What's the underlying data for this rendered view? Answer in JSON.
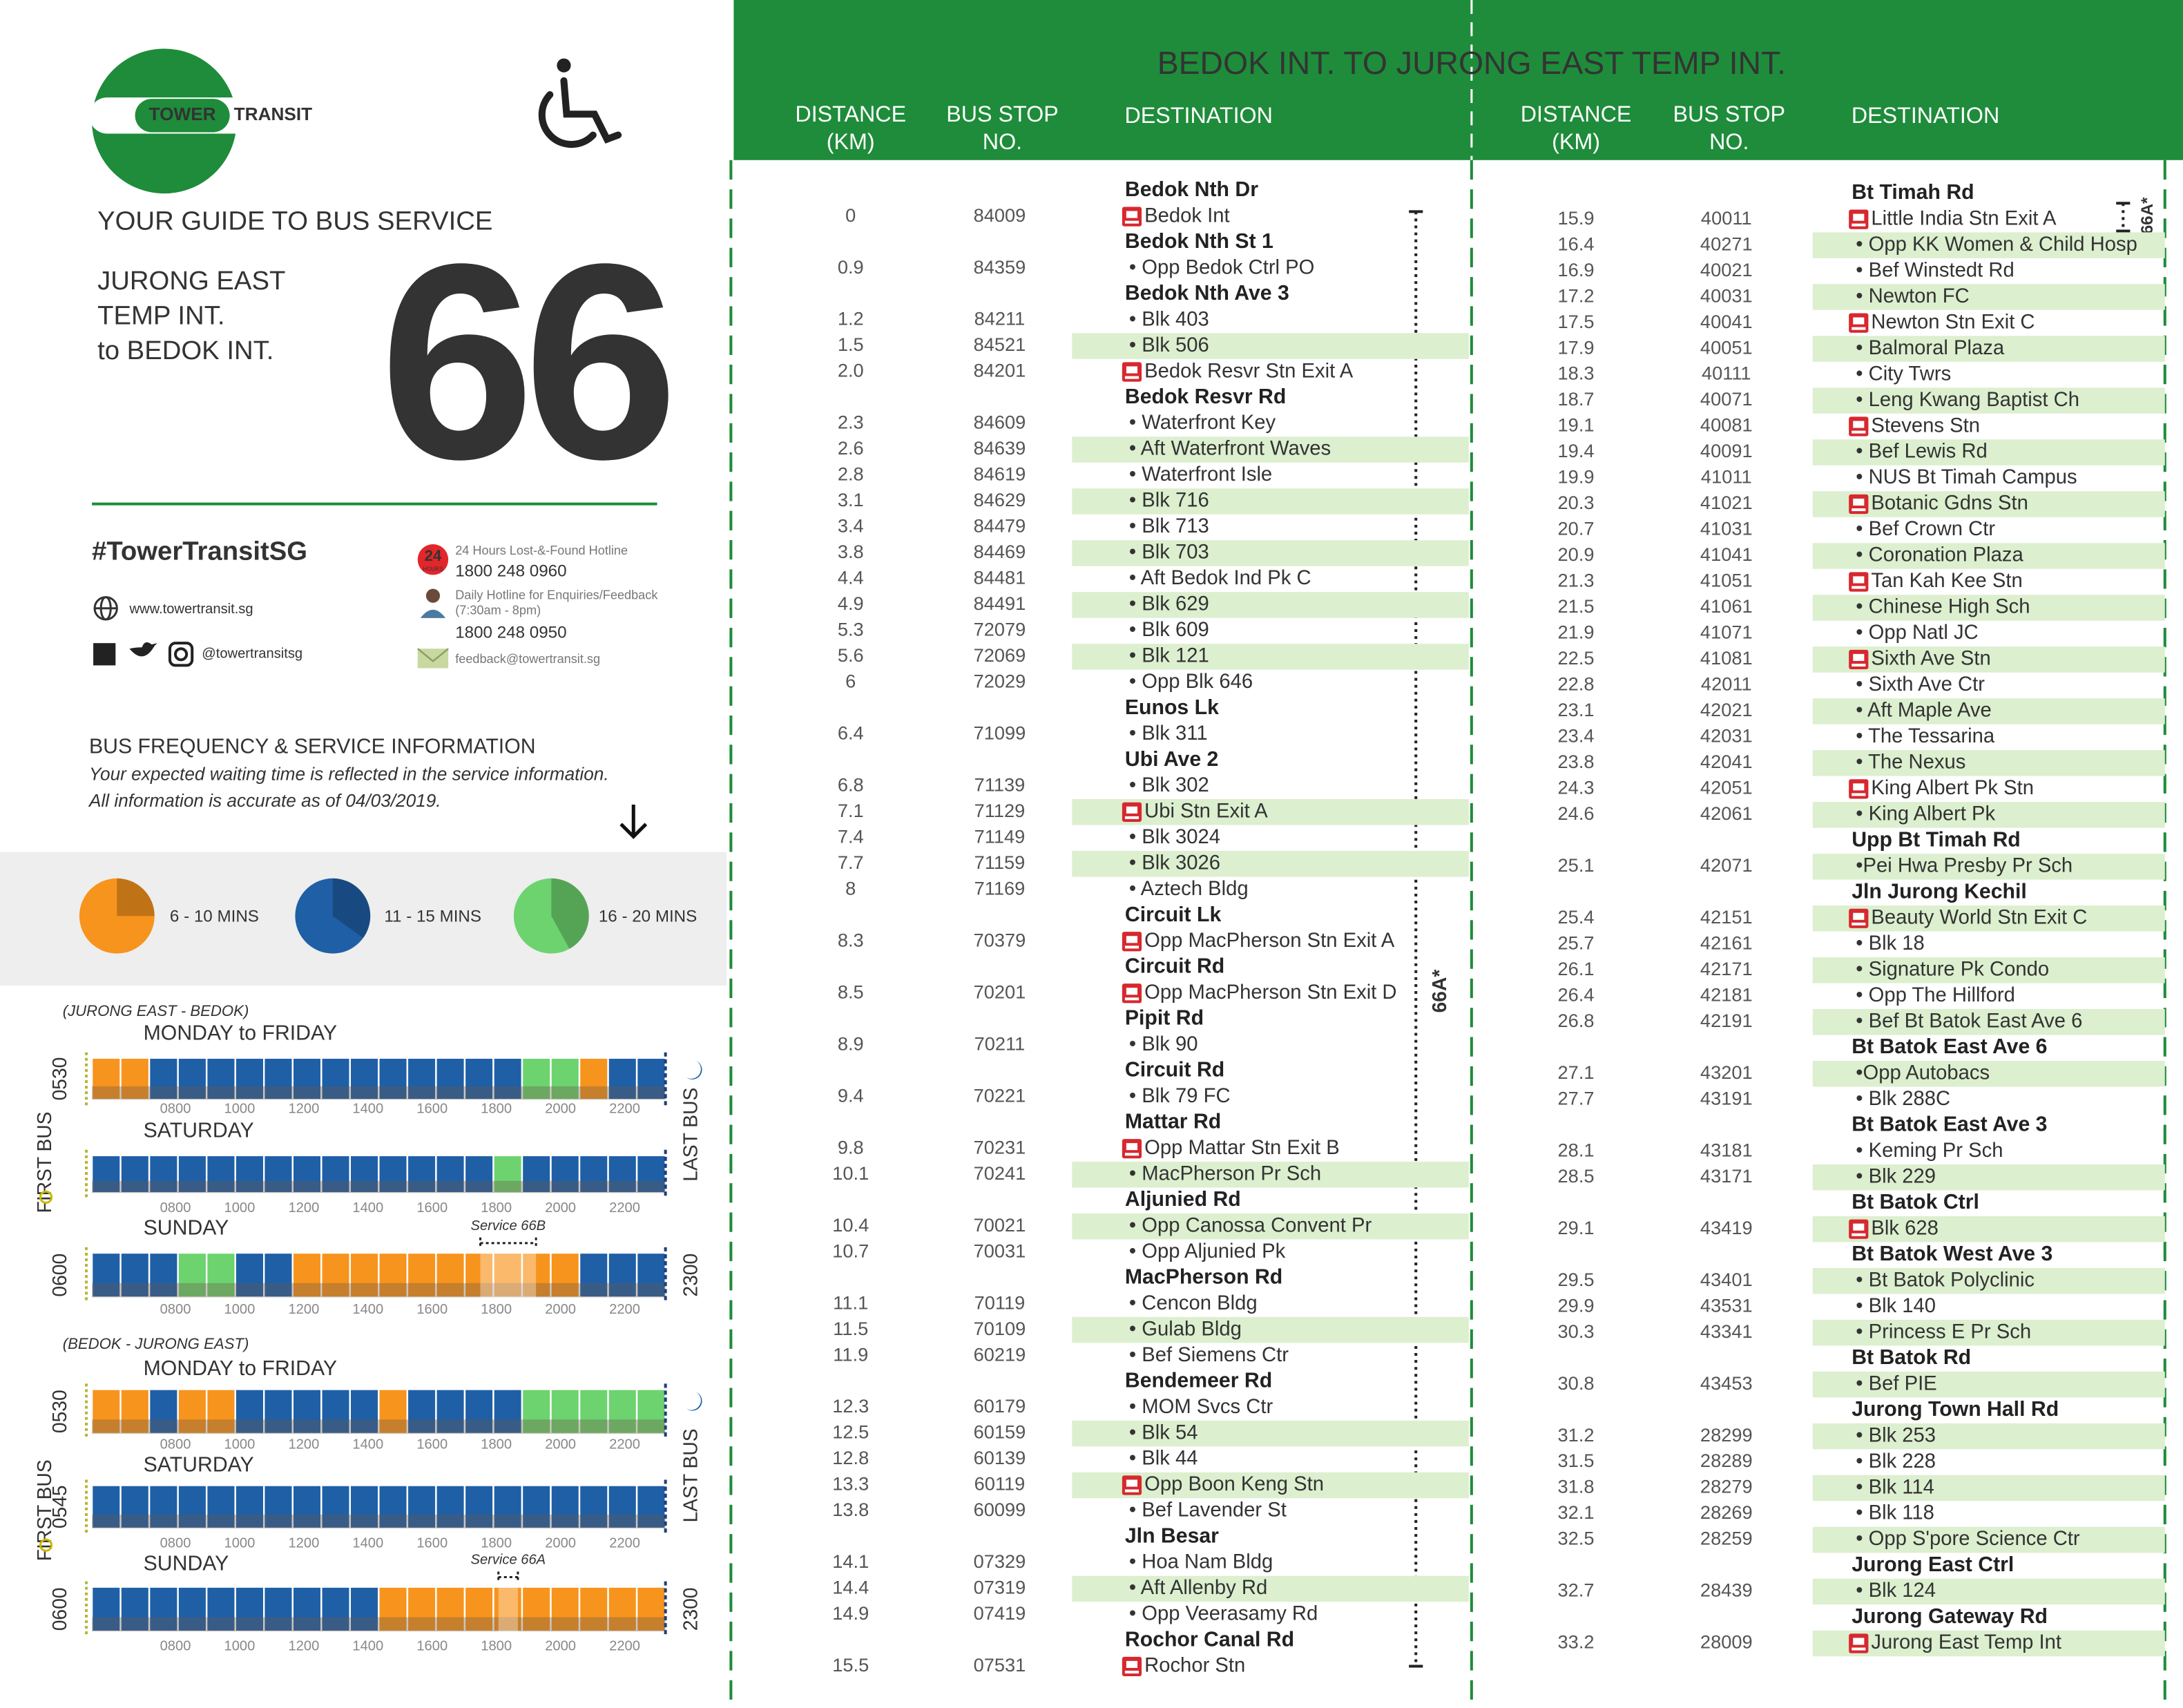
{
  "left": {
    "logo": {
      "word1": "TOWER",
      "word2": "TRANSIT"
    },
    "guide_title": "YOUR GUIDE TO BUS SERVICE",
    "route_lines": [
      "JURONG EAST",
      "TEMP INT.",
      "to BEDOK INT."
    ],
    "service_number": "66",
    "hashtag": "#TowerTransitSG",
    "website": "www.towertransit.sg",
    "social": "@towertransitsg",
    "hotlines": {
      "icon_number": "24",
      "icon_word": "HOURS",
      "lost_found_label": "24 Hours Lost-&-Found Hotline",
      "lost_found_number": "1800 248 0960",
      "daily_label": "Daily Hotline for Enquiries/Feedback",
      "daily_hours": "(7:30am - 8pm)",
      "daily_number": "1800 248 0950",
      "email": "feedback@towertransit.sg"
    },
    "frequency": {
      "title": "BUS FREQUENCY & SERVICE INFORMATION",
      "notes": [
        "Your expected waiting time is reflected in the service information.",
        "All information is accurate as of 04/03/2019."
      ],
      "legend": [
        {
          "label": "6 - 10 MINS",
          "color": "#f7941d"
        },
        {
          "label": "11 - 15 MINS",
          "color": "#1f5fa6"
        },
        {
          "label": "16 - 20 MINS",
          "color": "#6dd36f"
        }
      ]
    },
    "time_labels": [
      "0800",
      "1000",
      "1200",
      "1400",
      "1600",
      "1800",
      "2000",
      "2200"
    ],
    "first_bus_label": "FIRST BUS",
    "last_bus_label": "LAST BUS",
    "timetables": [
      {
        "direction": "(JURONG EAST - BEDOK)",
        "days": [
          {
            "label": "MONDAY to FRIDAY",
            "first_bus": "0530",
            "segments": [
              "#f7941d",
              "#f7941d",
              "#1f5fa6",
              "#1f5fa6",
              "#1f5fa6",
              "#1f5fa6",
              "#1f5fa6",
              "#1f5fa6",
              "#1f5fa6",
              "#1f5fa6",
              "#1f5fa6",
              "#1f5fa6",
              "#1f5fa6",
              "#1f5fa6",
              "#1f5fa6",
              "#6dd36f",
              "#6dd36f",
              "#f7941d",
              "#1f5fa6",
              "#1f5fa6"
            ]
          },
          {
            "label": "SATURDAY",
            "segments": [
              "#1f5fa6",
              "#1f5fa6",
              "#1f5fa6",
              "#1f5fa6",
              "#1f5fa6",
              "#1f5fa6",
              "#1f5fa6",
              "#1f5fa6",
              "#1f5fa6",
              "#1f5fa6",
              "#1f5fa6",
              "#1f5fa6",
              "#1f5fa6",
              "#1f5fa6",
              "#6dd36f",
              "#1f5fa6",
              "#1f5fa6",
              "#1f5fa6",
              "#1f5fa6",
              "#1f5fa6"
            ]
          },
          {
            "label": "SUNDAY",
            "first_bus": "0600",
            "last_bus": "2300",
            "service_note": "Service 66B",
            "segments": [
              "#1f5fa6",
              "#1f5fa6",
              "#1f5fa6",
              "#6dd36f",
              "#6dd36f",
              "#1f5fa6",
              "#1f5fa6",
              "#f7941d",
              "#f7941d",
              "#f7941d",
              "#f7941d",
              "#f7941d",
              "#f7941d",
              "#f7941d",
              "#f7941d",
              "#f7941d",
              "#f7941d",
              "#1f5fa6",
              "#1f5fa6",
              "#1f5fa6"
            ]
          }
        ]
      },
      {
        "direction": "(BEDOK - JURONG EAST)",
        "days": [
          {
            "label": "MONDAY to FRIDAY",
            "first_bus": "0530",
            "segments": [
              "#f7941d",
              "#f7941d",
              "#1f5fa6",
              "#f7941d",
              "#f7941d",
              "#1f5fa6",
              "#1f5fa6",
              "#1f5fa6",
              "#1f5fa6",
              "#1f5fa6",
              "#f7941d",
              "#1f5fa6",
              "#1f5fa6",
              "#1f5fa6",
              "#1f5fa6",
              "#6dd36f",
              "#6dd36f",
              "#6dd36f",
              "#6dd36f",
              "#6dd36f"
            ]
          },
          {
            "label": "SATURDAY",
            "first_bus": "0545",
            "segments": [
              "#1f5fa6",
              "#1f5fa6",
              "#1f5fa6",
              "#1f5fa6",
              "#1f5fa6",
              "#1f5fa6",
              "#1f5fa6",
              "#1f5fa6",
              "#1f5fa6",
              "#1f5fa6",
              "#1f5fa6",
              "#1f5fa6",
              "#1f5fa6",
              "#1f5fa6",
              "#1f5fa6",
              "#1f5fa6",
              "#1f5fa6",
              "#1f5fa6",
              "#1f5fa6",
              "#1f5fa6"
            ]
          },
          {
            "label": "SUNDAY",
            "first_bus": "0600",
            "last_bus": "2300",
            "service_note": "Service 66A",
            "segments": [
              "#1f5fa6",
              "#1f5fa6",
              "#1f5fa6",
              "#1f5fa6",
              "#1f5fa6",
              "#1f5fa6",
              "#1f5fa6",
              "#1f5fa6",
              "#1f5fa6",
              "#1f5fa6",
              "#f7941d",
              "#f7941d",
              "#f7941d",
              "#f7941d",
              "#f7941d",
              "#f7941d",
              "#f7941d",
              "#f7941d",
              "#f7941d",
              "#f7941d"
            ]
          }
        ]
      }
    ]
  },
  "right": {
    "title": "BEDOK INT. TO JURONG EAST TEMP INT.",
    "headers": {
      "distance": [
        "DISTANCE",
        "(KM)"
      ],
      "bus_stop": [
        "BUS STOP",
        "NO."
      ],
      "destination": "DESTINATION"
    },
    "service_note": "66A*",
    "columns": [
      [
        {
          "road": "Bedok Nth Dr"
        },
        {
          "km": "0",
          "stop": "84009",
          "name": "Bedok Int"
        },
        {
          "road": "Bedok Nth St 1"
        },
        {
          "km": "0.9",
          "stop": "84359",
          "name": "• Opp Bedok Ctrl PO"
        },
        {
          "road": "Bedok Nth Ave 3"
        },
        {
          "km": "1.2",
          "stop": "84211",
          "name": "• Blk 403"
        },
        {
          "km": "1.5",
          "stop": "84521",
          "name": "• Blk 506"
        },
        {
          "km": "2.0",
          "stop": "84201",
          "name": "Bedok Resvr Stn Exit A"
        },
        {
          "road": "Bedok Resvr Rd"
        },
        {
          "km": "2.3",
          "stop": "84609",
          "name": "• Waterfront Key"
        },
        {
          "km": "2.6",
          "stop": "84639",
          "name": "• Aft Waterfront Waves"
        },
        {
          "km": "2.8",
          "stop": "84619",
          "name": "• Waterfront Isle"
        },
        {
          "km": "3.1",
          "stop": "84629",
          "name": "• Blk 716"
        },
        {
          "km": "3.4",
          "stop": "84479",
          "name": "• Blk 713"
        },
        {
          "km": "3.8",
          "stop": "84469",
          "name": "• Blk 703"
        },
        {
          "km": "4.4",
          "stop": "84481",
          "name": "• Aft Bedok Ind Pk C"
        },
        {
          "km": "4.9",
          "stop": "84491",
          "name": "• Blk 629"
        },
        {
          "km": "5.3",
          "stop": "72079",
          "name": "• Blk 609"
        },
        {
          "km": "5.6",
          "stop": "72069",
          "name": "• Blk 121"
        },
        {
          "km": "6",
          "stop": "72029",
          "name": "• Opp Blk 646"
        },
        {
          "road": "Eunos Lk"
        },
        {
          "km": "6.4",
          "stop": "71099",
          "name": "• Blk 311"
        },
        {
          "road": "Ubi Ave 2"
        },
        {
          "km": "6.8",
          "stop": "71139",
          "name": "• Blk 302"
        },
        {
          "km": "7.1",
          "stop": "71129",
          "name": "Ubi Stn Exit A"
        },
        {
          "km": "7.4",
          "stop": "71149",
          "name": "• Blk 3024"
        },
        {
          "km": "7.7",
          "stop": "71159",
          "name": "• Blk 3026"
        },
        {
          "km": "8",
          "stop": "71169",
          "name": "• Aztech Bldg"
        },
        {
          "road": "Circuit Lk"
        },
        {
          "km": "8.3",
          "stop": "70379",
          "name": "Opp MacPherson Stn Exit A"
        },
        {
          "road": "Circuit Rd"
        },
        {
          "km": "8.5",
          "stop": "70201",
          "name": "Opp MacPherson Stn Exit D"
        },
        {
          "road": "Pipit Rd"
        },
        {
          "km": "8.9",
          "stop": "70211",
          "name": "• Blk 90"
        },
        {
          "road": "Circuit Rd"
        },
        {
          "km": "9.4",
          "stop": "70221",
          "name": "• Blk 79 FC"
        },
        {
          "road": "Mattar Rd"
        },
        {
          "km": "9.8",
          "stop": "70231",
          "name": "Opp Mattar Stn Exit B"
        },
        {
          "km": "10.1",
          "stop": "70241",
          "name": "• MacPherson Pr Sch"
        },
        {
          "road": "Aljunied Rd"
        },
        {
          "km": "10.4",
          "stop": "70021",
          "name": "• Opp Canossa Convent Pr"
        },
        {
          "km": "10.7",
          "stop": "70031",
          "name": "• Opp Aljunied Pk"
        },
        {
          "road": "MacPherson Rd"
        },
        {
          "km": "11.1",
          "stop": "70119",
          "name": "• Cencon Bldg"
        },
        {
          "km": "11.5",
          "stop": "70109",
          "name": "• Gulab Bldg"
        },
        {
          "km": "11.9",
          "stop": "60219",
          "name": "• Bef Siemens Ctr"
        },
        {
          "road": "Bendemeer Rd"
        },
        {
          "km": "12.3",
          "stop": "60179",
          "name": "• MOM Svcs Ctr"
        },
        {
          "km": "12.5",
          "stop": "60159",
          "name": "• Blk 54"
        },
        {
          "km": "12.8",
          "stop": "60139",
          "name": "• Blk 44"
        },
        {
          "km": "13.3",
          "stop": "60119",
          "name": "Opp Boon Keng Stn"
        },
        {
          "km": "13.8",
          "stop": "60099",
          "name": "• Bef Lavender St"
        },
        {
          "road": "Jln Besar"
        },
        {
          "km": "14.1",
          "stop": "07329",
          "name": "• Hoa Nam Bldg"
        },
        {
          "km": "14.4",
          "stop": "07319",
          "name": "• Aft Allenby Rd"
        },
        {
          "km": "14.9",
          "stop": "07419",
          "name": "• Opp Veerasamy Rd"
        },
        {
          "road": "Rochor Canal Rd"
        },
        {
          "km": "15.5",
          "stop": "07531",
          "name": "Rochor Stn"
        }
      ],
      [
        {
          "road": "Bt Timah Rd"
        },
        {
          "km": "15.9",
          "stop": "40011",
          "name": "Little India Stn Exit A"
        },
        {
          "km": "16.4",
          "stop": "40271",
          "name": "• Opp KK Women & Child Hosp"
        },
        {
          "km": "16.9",
          "stop": "40021",
          "name": "• Bef Winstedt Rd"
        },
        {
          "km": "17.2",
          "stop": "40031",
          "name": "• Newton FC"
        },
        {
          "km": "17.5",
          "stop": "40041",
          "name": "Newton Stn Exit C"
        },
        {
          "km": "17.9",
          "stop": "40051",
          "name": "• Balmoral Plaza"
        },
        {
          "km": "18.3",
          "stop": "40111",
          "name": "• City Twrs"
        },
        {
          "km": "18.7",
          "stop": "40071",
          "name": "• Leng Kwang Baptist Ch"
        },
        {
          "km": "19.1",
          "stop": "40081",
          "name": "Stevens Stn"
        },
        {
          "km": "19.4",
          "stop": "40091",
          "name": "• Bef Lewis Rd"
        },
        {
          "km": "19.9",
          "stop": "41011",
          "name": "• NUS Bt Timah Campus"
        },
        {
          "km": "20.3",
          "stop": "41021",
          "name": "Botanic Gdns Stn"
        },
        {
          "km": "20.7",
          "stop": "41031",
          "name": "• Bef Crown Ctr"
        },
        {
          "km": "20.9",
          "stop": "41041",
          "name": "• Coronation Plaza"
        },
        {
          "km": "21.3",
          "stop": "41051",
          "name": "Tan Kah Kee Stn"
        },
        {
          "km": "21.5",
          "stop": "41061",
          "name": "• Chinese High Sch"
        },
        {
          "km": "21.9",
          "stop": "41071",
          "name": "• Opp Natl JC"
        },
        {
          "km": "22.5",
          "stop": "41081",
          "name": "Sixth Ave Stn"
        },
        {
          "km": "22.8",
          "stop": "42011",
          "name": "• Sixth Ave Ctr"
        },
        {
          "km": "23.1",
          "stop": "42021",
          "name": "• Aft Maple Ave"
        },
        {
          "km": "23.4",
          "stop": "42031",
          "name": "• The Tessarina"
        },
        {
          "km": "23.8",
          "stop": "42041",
          "name": "• The Nexus"
        },
        {
          "km": "24.3",
          "stop": "42051",
          "name": "King Albert Pk Stn"
        },
        {
          "km": "24.6",
          "stop": "42061",
          "name": "• King Albert Pk"
        },
        {
          "road": "Upp Bt Timah Rd"
        },
        {
          "km": "25.1",
          "stop": "42071",
          "name": "•Pei Hwa Presby Pr Sch"
        },
        {
          "road": "Jln Jurong Kechil"
        },
        {
          "km": "25.4",
          "stop": "42151",
          "name": "Beauty World Stn Exit C"
        },
        {
          "km": "25.7",
          "stop": "42161",
          "name": "• Blk 18"
        },
        {
          "km": "26.1",
          "stop": "42171",
          "name": "• Signature Pk Condo"
        },
        {
          "km": "26.4",
          "stop": "42181",
          "name": "• Opp The Hillford"
        },
        {
          "km": "26.8",
          "stop": "42191",
          "name": "• Bef Bt Batok East Ave 6"
        },
        {
          "road": "Bt Batok East Ave 6"
        },
        {
          "km": "27.1",
          "stop": "43201",
          "name": "•Opp Autobacs"
        },
        {
          "km": "27.7",
          "stop": "43191",
          "name": "• Blk 288C"
        },
        {
          "road": "Bt Batok East Ave 3"
        },
        {
          "km": "28.1",
          "stop": "43181",
          "name": "• Keming Pr Sch"
        },
        {
          "km": "28.5",
          "stop": "43171",
          "name": "• Blk 229"
        },
        {
          "road": "Bt Batok Ctrl"
        },
        {
          "km": "29.1",
          "stop": "43419",
          "name": "Blk 628"
        },
        {
          "road": "Bt Batok West Ave 3"
        },
        {
          "km": "29.5",
          "stop": "43401",
          "name": "• Bt Batok Polyclinic"
        },
        {
          "km": "29.9",
          "stop": "43531",
          "name": "• Blk 140"
        },
        {
          "km": "30.3",
          "stop": "43341",
          "name": "• Princess E Pr Sch"
        },
        {
          "road": "Bt Batok Rd"
        },
        {
          "km": "30.8",
          "stop": "43453",
          "name": "• Bef PIE"
        },
        {
          "road": "Jurong Town Hall Rd"
        },
        {
          "km": "31.2",
          "stop": "28299",
          "name": "• Blk 253"
        },
        {
          "km": "31.5",
          "stop": "28289",
          "name": "• Blk 228"
        },
        {
          "km": "31.8",
          "stop": "28279",
          "name": "• Blk 114"
        },
        {
          "km": "32.1",
          "stop": "28269",
          "name": "• Blk 118"
        },
        {
          "km": "32.5",
          "stop": "28259",
          "name": "• Opp S'pore Science Ctr"
        },
        {
          "road": "Jurong East Ctrl"
        },
        {
          "km": "32.7",
          "stop": "28439",
          "name": "• Blk 124"
        },
        {
          "road": "Jurong Gateway Rd"
        },
        {
          "km": "33.2",
          "stop": "28009",
          "name": "Jurong East Temp Int"
        }
      ]
    ]
  }
}
